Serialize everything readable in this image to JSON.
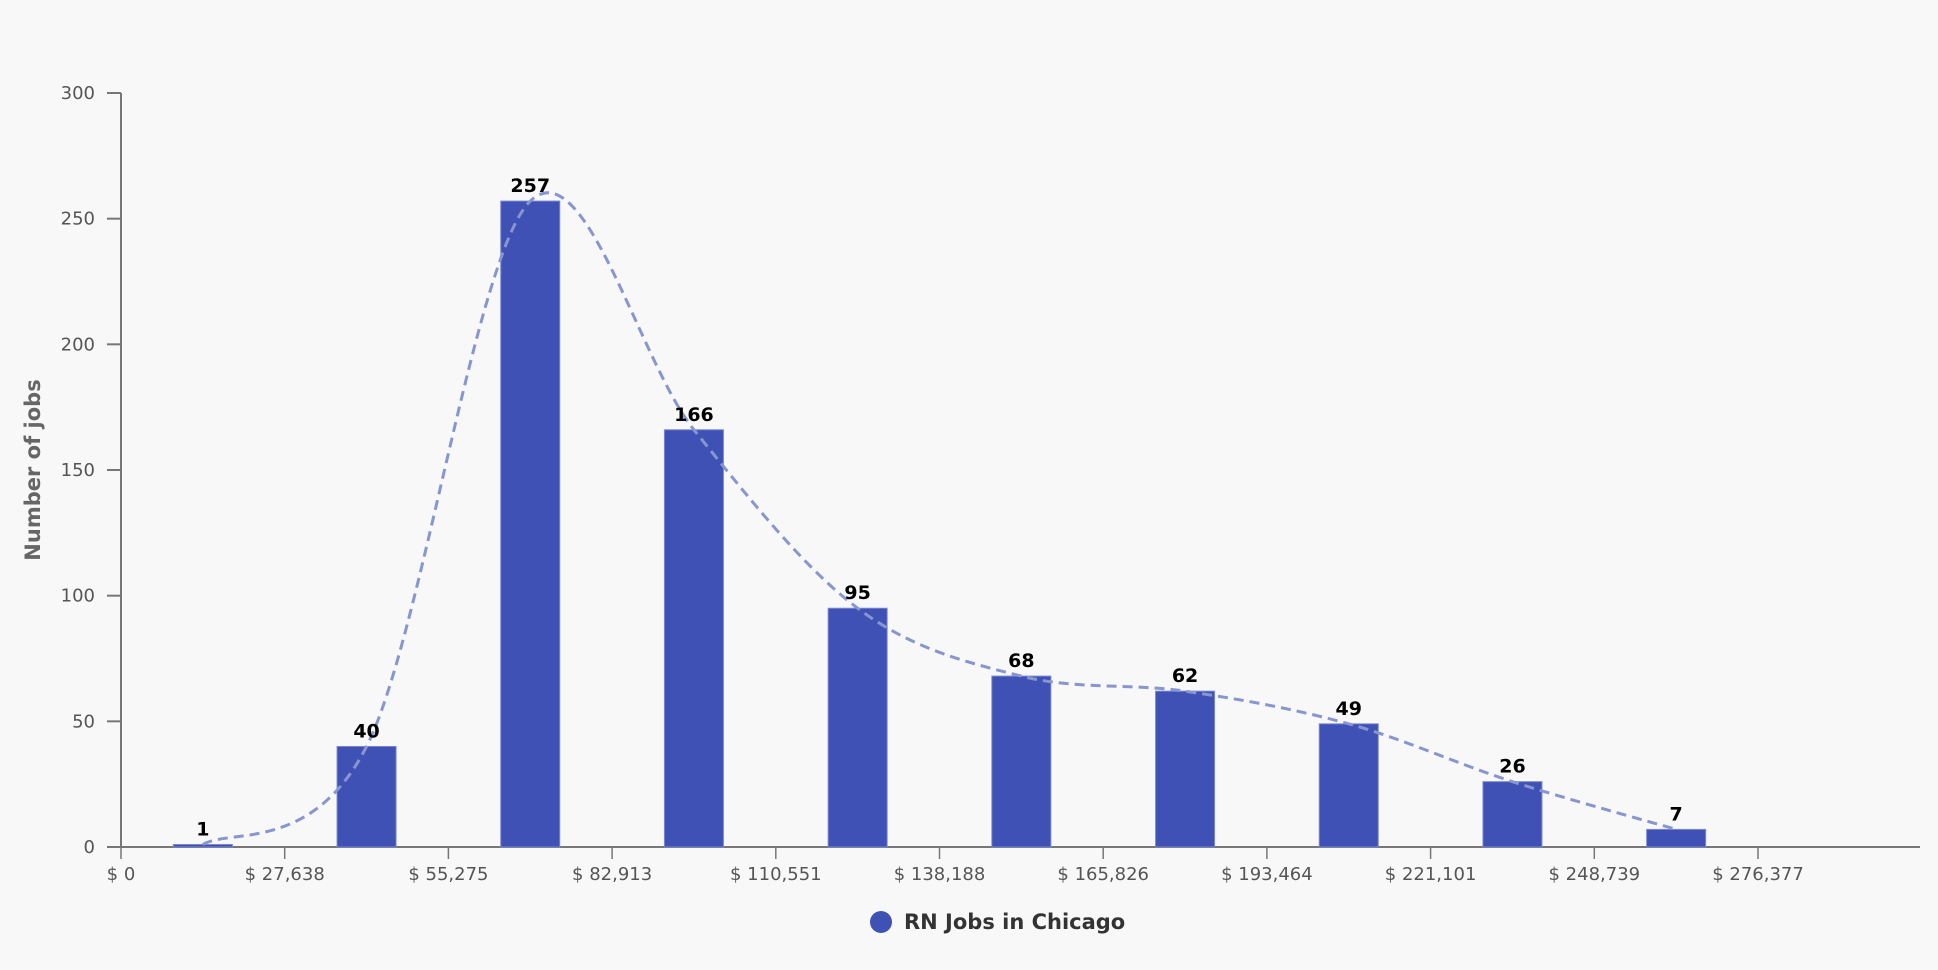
{
  "chart_data": {
    "type": "bar",
    "title": "",
    "xlabel": "",
    "ylabel": "Number of jobs",
    "ylim": [
      0,
      300
    ],
    "yticks": [
      0,
      50,
      100,
      150,
      200,
      250,
      300
    ],
    "xticks": [
      "$ 0",
      "$ 27,638",
      "$ 55,275",
      "$ 82,913",
      "$ 110,551",
      "$ 138,188",
      "$ 165,826",
      "$ 193,464",
      "$ 221,101",
      "$ 248,739",
      "$ 276,377"
    ],
    "categories": [
      "$0–$27,638",
      "$27,638–$55,275",
      "$55,275–$82,913",
      "$82,913–$110,551",
      "$110,551–$138,188",
      "$138,188–$165,826",
      "$165,826–$193,464",
      "$193,464–$221,101",
      "$221,101–$248,739",
      "$248,739–$276,377"
    ],
    "series": [
      {
        "name": "RN Jobs in Chicago",
        "type": "bar",
        "color": "#3f51b5",
        "values": [
          1,
          40,
          257,
          166,
          95,
          68,
          62,
          49,
          26,
          7
        ]
      },
      {
        "name": "Trend",
        "type": "line",
        "style": "dashed",
        "color": "#8796cf",
        "values": [
          1,
          40,
          257,
          166,
          95,
          68,
          62,
          49,
          26,
          7
        ]
      }
    ],
    "grid": false,
    "legend_position": "bottom"
  },
  "legend": {
    "label": "RN Jobs in Chicago"
  },
  "colors": {
    "bar": "#3f51b5",
    "trend": "#8796cf",
    "axis": "#777777"
  }
}
